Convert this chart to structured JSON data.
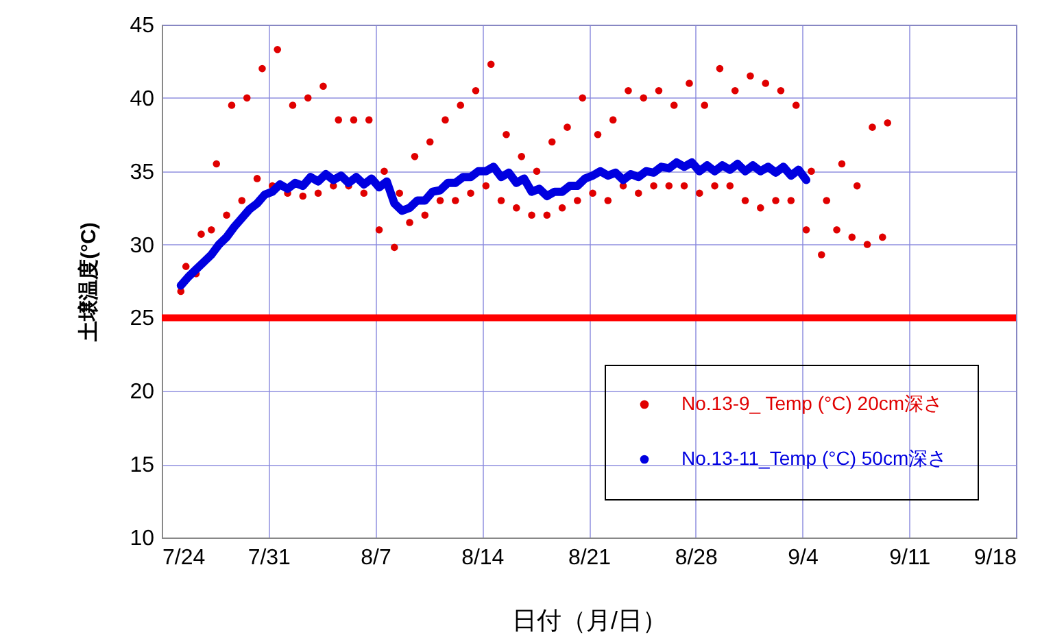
{
  "chart_data": {
    "type": "scatter",
    "xlabel": "日付（月/日）",
    "ylabel": "土壌温度(°C)",
    "xlim": [
      "--07-24",
      "--09-18"
    ],
    "xticks": [
      {
        "value": "--07-24",
        "label": "7/24"
      },
      {
        "value": "--07-31",
        "label": "7/31"
      },
      {
        "value": "--08-07",
        "label": "8/7"
      },
      {
        "value": "--08-14",
        "label": "8/14"
      },
      {
        "value": "--08-21",
        "label": "8/21"
      },
      {
        "value": "--08-28",
        "label": "8/28"
      },
      {
        "value": "--09-04",
        "label": "9/4"
      },
      {
        "value": "--09-11",
        "label": "9/11"
      },
      {
        "value": "--09-18",
        "label": "9/18"
      }
    ],
    "ylim": [
      10,
      45
    ],
    "yticks": [
      10,
      15,
      20,
      25,
      30,
      35,
      40,
      45
    ],
    "grid": true,
    "legend": "bottom right",
    "marker": "circle",
    "ref_lines": [
      {
        "axis": "y",
        "value": 25,
        "color": "#ff0000"
      }
    ],
    "series": [
      {
        "name": "No.13-9_ Temp (°C) 20cm深さ",
        "color": "#e00000",
        "x": [
          "--07-25T06:00",
          "--07-25T14:00",
          "--07-26T06:00",
          "--07-26T14:00",
          "--07-27T06:00",
          "--07-27T14:00",
          "--07-28T06:00",
          "--07-28T14:00",
          "--07-29T06:00",
          "--07-29T14:00",
          "--07-30T06:00",
          "--07-30T14:00",
          "--07-31T06:00",
          "--07-31T14:00",
          "--08-01T06:00",
          "--08-01T14:00",
          "--08-02T06:00",
          "--08-02T14:00",
          "--08-03T06:00",
          "--08-03T14:00",
          "--08-04T06:00",
          "--08-04T14:00",
          "--08-05T06:00",
          "--08-05T14:00",
          "--08-06T06:00",
          "--08-06T14:00",
          "--08-07T06:00",
          "--08-07T14:00",
          "--08-08T06:00",
          "--08-08T14:00",
          "--08-09T06:00",
          "--08-09T14:00",
          "--08-10T06:00",
          "--08-10T14:00",
          "--08-11T06:00",
          "--08-11T14:00",
          "--08-12T06:00",
          "--08-12T14:00",
          "--08-13T06:00",
          "--08-13T14:00",
          "--08-14T06:00",
          "--08-14T14:00",
          "--08-15T06:00",
          "--08-15T14:00",
          "--08-16T06:00",
          "--08-16T14:00",
          "--08-17T06:00",
          "--08-17T14:00",
          "--08-18T06:00",
          "--08-18T14:00",
          "--08-19T06:00",
          "--08-19T14:00",
          "--08-20T06:00",
          "--08-20T14:00",
          "--08-21T06:00",
          "--08-21T14:00",
          "--08-22T06:00",
          "--08-22T14:00",
          "--08-23T06:00",
          "--08-23T14:00",
          "--08-24T06:00",
          "--08-24T14:00",
          "--08-25T06:00",
          "--08-25T14:00",
          "--08-26T06:00",
          "--08-26T14:00",
          "--08-27T06:00",
          "--08-27T14:00",
          "--08-28T06:00",
          "--08-28T14:00",
          "--08-29T06:00",
          "--08-29T14:00",
          "--08-30T06:00",
          "--08-30T14:00",
          "--08-31T06:00",
          "--08-31T14:00",
          "--09-01T06:00",
          "--09-01T14:00",
          "--09-02T06:00",
          "--09-02T14:00",
          "--09-03T06:00",
          "--09-03T14:00",
          "--09-04T06:00",
          "--09-04T14:00",
          "--09-05T06:00",
          "--09-05T14:00",
          "--09-06T06:00",
          "--09-06T14:00",
          "--09-07T06:00",
          "--09-07T14:00",
          "--09-08T06:00",
          "--09-08T14:00",
          "--09-09T06:00",
          "--09-09T14:00"
        ],
        "values": [
          26.8,
          28.5,
          28,
          30.7,
          31,
          35.5,
          32,
          39.5,
          33,
          40,
          34.5,
          42,
          34,
          43.3,
          33.5,
          39.5,
          33.3,
          40,
          33.5,
          40.8,
          34,
          38.5,
          34,
          38.5,
          33.5,
          38.5,
          31,
          35,
          29.8,
          33.5,
          31.5,
          36,
          32,
          37,
          33,
          38.5,
          33,
          39.5,
          33.5,
          40.5,
          34,
          42.3,
          33,
          37.5,
          32.5,
          36,
          32,
          35,
          32,
          37,
          32.5,
          38,
          33,
          40,
          33.5,
          37.5,
          33,
          38.5,
          34,
          40.5,
          33.5,
          40,
          34,
          40.5,
          34,
          39.5,
          34,
          41,
          33.5,
          39.5,
          34,
          42,
          34,
          40.5,
          33,
          41.5,
          32.5,
          41,
          33,
          40.5,
          33,
          39.5,
          31,
          35,
          29.3,
          33,
          31,
          35.5,
          30.5,
          34,
          30,
          38,
          30.5,
          38.3
        ]
      },
      {
        "name": "No.13-11_Temp (°C) 50cm深さ",
        "type": "line",
        "color": "#0000e0",
        "x": [
          "--07-25T06:00",
          "--07-25T18:00",
          "--07-26T06:00",
          "--07-26T18:00",
          "--07-27T06:00",
          "--07-27T18:00",
          "--07-28T06:00",
          "--07-28T18:00",
          "--07-29T06:00",
          "--07-29T18:00",
          "--07-30T06:00",
          "--07-30T18:00",
          "--07-31T06:00",
          "--07-31T18:00",
          "--08-01T06:00",
          "--08-01T18:00",
          "--08-02T06:00",
          "--08-02T18:00",
          "--08-03T06:00",
          "--08-03T18:00",
          "--08-04T06:00",
          "--08-04T18:00",
          "--08-05T06:00",
          "--08-05T18:00",
          "--08-06T06:00",
          "--08-06T18:00",
          "--08-07T06:00",
          "--08-07T18:00",
          "--08-08T06:00",
          "--08-08T18:00",
          "--08-09T06:00",
          "--08-09T18:00",
          "--08-10T06:00",
          "--08-10T18:00",
          "--08-11T06:00",
          "--08-11T18:00",
          "--08-12T06:00",
          "--08-12T18:00",
          "--08-13T06:00",
          "--08-13T18:00",
          "--08-14T06:00",
          "--08-14T18:00",
          "--08-15T06:00",
          "--08-15T18:00",
          "--08-16T06:00",
          "--08-16T18:00",
          "--08-17T06:00",
          "--08-17T18:00",
          "--08-18T06:00",
          "--08-18T18:00",
          "--08-19T06:00",
          "--08-19T18:00",
          "--08-20T06:00",
          "--08-20T18:00",
          "--08-21T06:00",
          "--08-21T18:00",
          "--08-22T06:00",
          "--08-22T18:00",
          "--08-23T06:00",
          "--08-23T18:00",
          "--08-24T06:00",
          "--08-24T18:00",
          "--08-25T06:00",
          "--08-25T18:00",
          "--08-26T06:00",
          "--08-26T18:00",
          "--08-27T06:00",
          "--08-27T18:00",
          "--08-28T06:00",
          "--08-28T18:00",
          "--08-29T06:00",
          "--08-29T18:00",
          "--08-30T06:00",
          "--08-30T18:00",
          "--08-31T06:00",
          "--08-31T18:00",
          "--09-01T06:00",
          "--09-01T18:00",
          "--09-02T06:00",
          "--09-02T18:00",
          "--09-03T06:00",
          "--09-03T18:00",
          "--09-04T06:00"
        ],
        "values": [
          27.2,
          27.8,
          28.3,
          28.8,
          29.3,
          30,
          30.5,
          31.2,
          31.8,
          32.4,
          32.8,
          33.4,
          33.6,
          34.1,
          33.8,
          34.2,
          34,
          34.6,
          34.3,
          34.8,
          34.4,
          34.7,
          34.2,
          34.6,
          34.1,
          34.5,
          33.9,
          34.3,
          32.8,
          32.3,
          32.5,
          33,
          33,
          33.6,
          33.7,
          34.2,
          34.2,
          34.6,
          34.6,
          35,
          35,
          35.3,
          34.6,
          34.9,
          34.2,
          34.5,
          33.6,
          33.8,
          33.3,
          33.6,
          33.6,
          34,
          34,
          34.5,
          34.7,
          35,
          34.7,
          34.9,
          34.4,
          34.8,
          34.6,
          35,
          34.9,
          35.3,
          35.2,
          35.6,
          35.3,
          35.6,
          35,
          35.4,
          35,
          35.4,
          35.1,
          35.5,
          35,
          35.4,
          35,
          35.3,
          34.9,
          35.3,
          34.7,
          35.1,
          34.4
        ]
      }
    ]
  }
}
